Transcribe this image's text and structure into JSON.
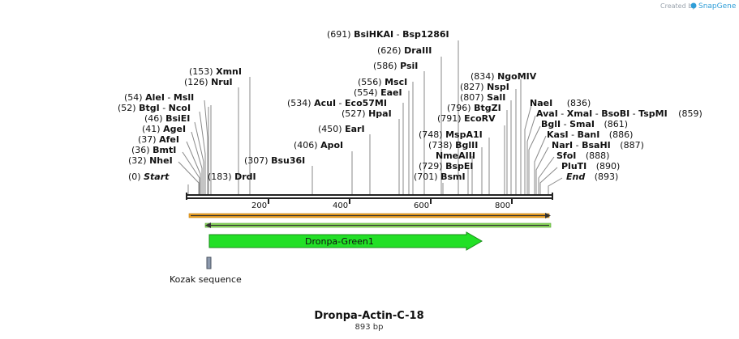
{
  "app": {
    "credit_prefix": "Created by",
    "credit_brand": "SnapGene",
    "brand_color": "#2f9ed8"
  },
  "map": {
    "title": "Dronpa-Actin-C-18",
    "length_label": "893 bp",
    "length_bp": 893,
    "axis_ticks": [
      "200",
      "400",
      "600",
      "800"
    ],
    "colors": {
      "backbone": "#222222",
      "line": "#8a8a8a",
      "orange_track": "#f5a623",
      "green_track": "#8ede5e",
      "cds_fill": "#22e026",
      "cds_stroke": "#1a8a1a",
      "misc_fill": "#8c99ad"
    }
  },
  "sites": [
    {
      "pos": "(0)",
      "name": "Start"
    },
    {
      "pos": "(32)",
      "name": "NheI"
    },
    {
      "pos": "(36)",
      "name": "BmtI"
    },
    {
      "pos": "(37)",
      "name": "AfeI"
    },
    {
      "pos": "(41)",
      "name": "AgeI"
    },
    {
      "pos": "(46)",
      "name": "BsiEI"
    },
    {
      "pos": "(52)",
      "name": "BtgI",
      "name2": "NcoI"
    },
    {
      "pos": "(54)",
      "name": "AleI",
      "name2": "MslI"
    },
    {
      "pos": "(126)",
      "name": "NruI"
    },
    {
      "pos": "(153)",
      "name": "XmnI"
    },
    {
      "pos": "(183)",
      "name": "DrdI"
    },
    {
      "pos": "(307)",
      "name": "Bsu36I"
    },
    {
      "pos": "(406)",
      "name": "ApoI"
    },
    {
      "pos": "(450)",
      "name": "EarI"
    },
    {
      "pos": "(534)",
      "name": "AcuI",
      "name2": "Eco57MI"
    },
    {
      "pos": "(527)",
      "name": "HpaI"
    },
    {
      "pos": "(554)",
      "name": "EaeI"
    },
    {
      "pos": "(556)",
      "name": "MscI"
    },
    {
      "pos": "(586)",
      "name": "PsiI"
    },
    {
      "pos": "(626)",
      "name": "DraIII"
    },
    {
      "pos": "(691)",
      "name": "BsiHKAI",
      "name2": "Bsp1286I"
    },
    {
      "pos": "(701)",
      "name": "BsmI"
    },
    {
      "pos": "(729)",
      "name": "BspEI"
    },
    {
      "pos": "NmeAIII"
    },
    {
      "pos": "(738)",
      "name": "BglII"
    },
    {
      "pos": "(748)",
      "name": "MspA1I"
    },
    {
      "pos": "(791)",
      "name": "EcoRV"
    },
    {
      "pos": "(796)",
      "name": "BtgZI"
    },
    {
      "pos": "(807)",
      "name": "SalI"
    },
    {
      "pos": "(827)",
      "name": "NspI"
    },
    {
      "pos": "(834)",
      "name": "NgoMIV"
    },
    {
      "name": "NaeI",
      "pos": "(836)"
    },
    {
      "name": "AvaI",
      "name2": "XmaI",
      "name3": "BsoBI",
      "name4": "TspMI",
      "pos": "(859)"
    },
    {
      "name": "BglI",
      "name2": "SmaI",
      "pos": "(861)"
    },
    {
      "name": "KasI",
      "name2": "BanI",
      "pos": "(886)"
    },
    {
      "name": "NarI",
      "name2": "BsaHI",
      "pos": "(887)"
    },
    {
      "name": "SfoI",
      "pos": "(888)"
    },
    {
      "name": "PluTI",
      "pos": "(890)"
    },
    {
      "name": "End",
      "pos": "(893)"
    }
  ],
  "features": {
    "cds_label": "Dronpa-Green1",
    "misc_label": "Kozak sequence"
  }
}
